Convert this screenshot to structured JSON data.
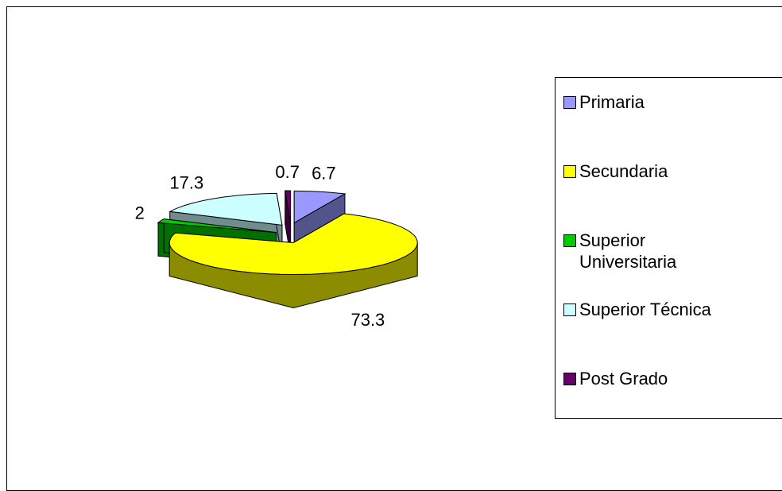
{
  "chart_data": {
    "type": "pie",
    "categories": [
      "Primaria",
      "Secundaria",
      "Superior Universitaria",
      "Superior Técnica",
      "Post Grado"
    ],
    "values": [
      6.7,
      73.3,
      2,
      17.3,
      0.7
    ],
    "colors": [
      "#9999ff",
      "#ffff00",
      "#00cc00",
      "#ccffff",
      "#660066"
    ],
    "legend": "right"
  }
}
